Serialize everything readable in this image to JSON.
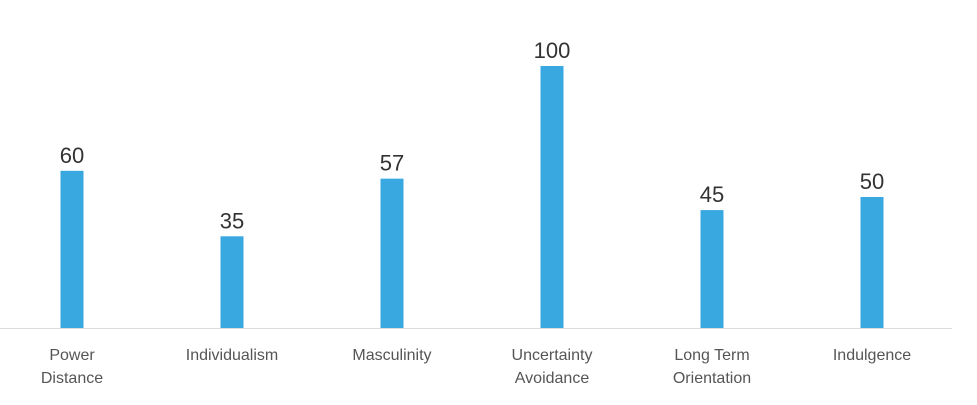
{
  "chart_data": {
    "type": "bar",
    "categories": [
      "Power Distance",
      "Individualism",
      "Masculinity",
      "Uncertainty Avoidance",
      "Long Term Orientation",
      "Indulgence"
    ],
    "values": [
      60,
      35,
      57,
      100,
      45,
      50
    ],
    "color": "#3aa8e0"
  }
}
